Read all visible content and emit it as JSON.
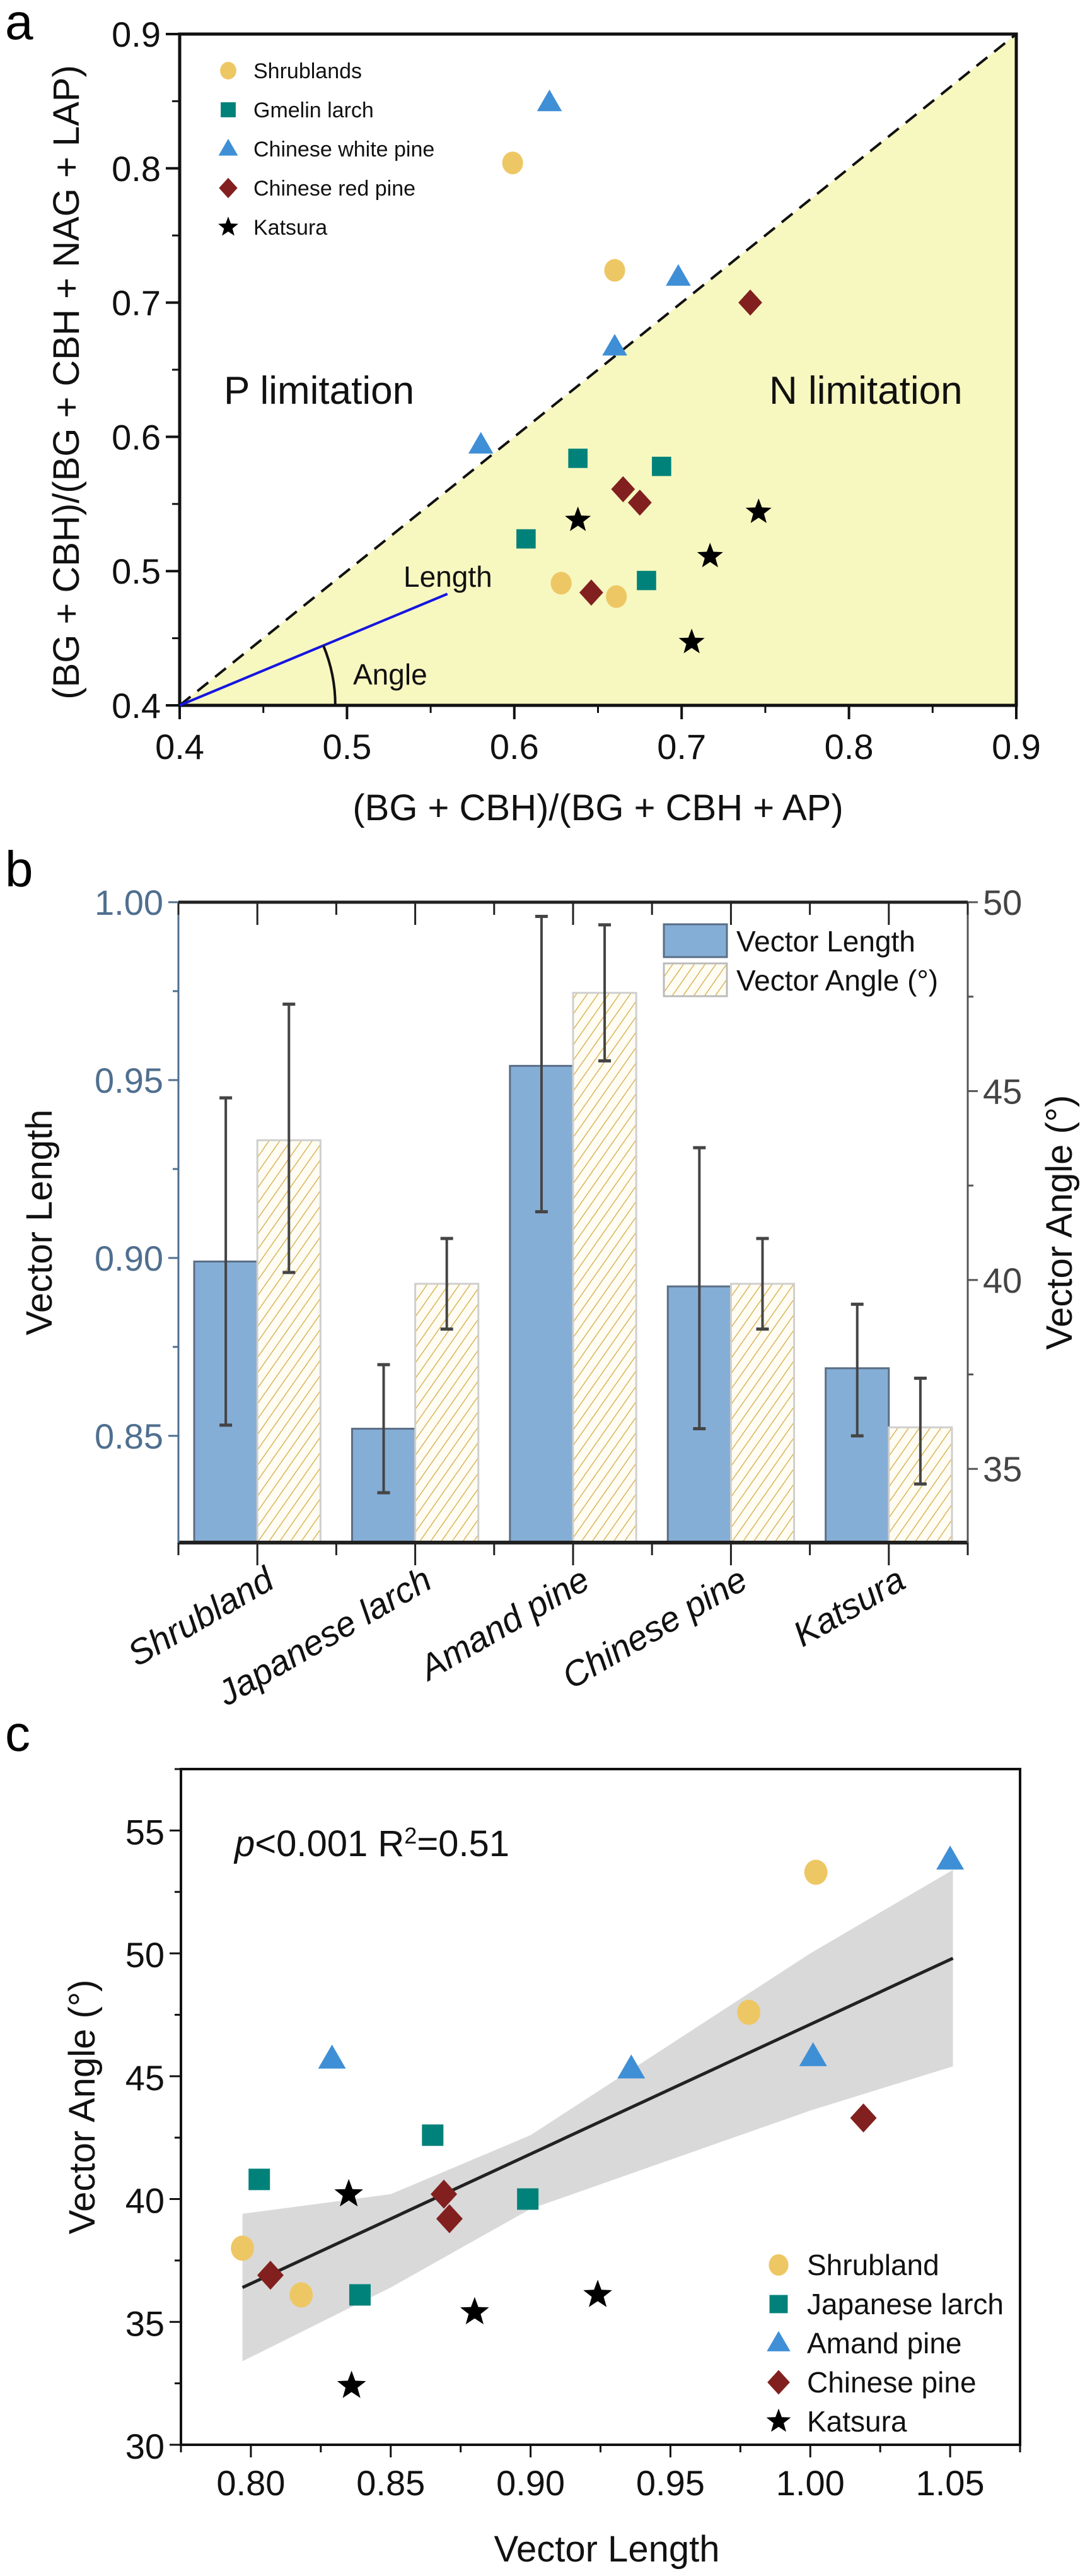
{
  "figure": {
    "panels": [
      "a",
      "b",
      "c"
    ]
  },
  "colors": {
    "shrub": "#EEC765",
    "larch": "#00827A",
    "amand": "#3F8FD6",
    "redpine": "#82201F",
    "katsura": "#000000",
    "nregion": "#F7F7C0",
    "bar_length": "#85AED6",
    "bar_angle_stroke": "#D9B45C",
    "left_axis_b": "#4F6F8F",
    "length_arrow": "#1515E0",
    "length_text": "#3F3FE8",
    "angle_text": "#E8504A",
    "ci_band": "#D9D9D9"
  },
  "chart_data": [
    {
      "id": "a",
      "type": "scatter",
      "panel_label": "a",
      "xlabel": "(BG + CBH)/(BG + CBH + AP)",
      "ylabel": "(BG + CBH)/(BG + CBH + NAG + LAP)",
      "xlim": [
        0.4,
        0.9
      ],
      "ylim": [
        0.4,
        0.9
      ],
      "xticks": [
        0.4,
        0.5,
        0.6,
        0.7,
        0.8,
        0.9
      ],
      "yticks": [
        0.4,
        0.5,
        0.6,
        0.7,
        0.8,
        0.9
      ],
      "xtick_labels": [
        "0.4",
        "0.5",
        "0.6",
        "0.7",
        "0.8",
        "0.9"
      ],
      "ytick_labels": [
        "0.4",
        "0.5",
        "0.6",
        "0.7",
        "0.8",
        "0.9"
      ],
      "reference_line": "1:1 dashed diagonal",
      "annotations": {
        "p_region": "P limitation",
        "n_region": "N limitation",
        "length_label": "Length",
        "angle_label": "Angle",
        "length_vector_end": [
          0.56,
          0.483
        ]
      },
      "legend_position": "top-left",
      "series": [
        {
          "name": "Shrublands",
          "marker": "circle",
          "color_key": "shrub",
          "points": [
            [
              0.599,
              0.804
            ],
            [
              0.66,
              0.724
            ],
            [
              0.628,
              0.491
            ],
            [
              0.661,
              0.481
            ]
          ]
        },
        {
          "name": "Gmelin larch",
          "marker": "square",
          "color_key": "larch",
          "points": [
            [
              0.638,
              0.584
            ],
            [
              0.688,
              0.578
            ],
            [
              0.607,
              0.524
            ],
            [
              0.679,
              0.493
            ]
          ]
        },
        {
          "name": "Chinese white pine",
          "marker": "triangle",
          "color_key": "amand",
          "points": [
            [
              0.621,
              0.849
            ],
            [
              0.698,
              0.719
            ],
            [
              0.66,
              0.667
            ],
            [
              0.58,
              0.594
            ]
          ]
        },
        {
          "name": "Chinese red pine",
          "marker": "diamond",
          "color_key": "redpine",
          "points": [
            [
              0.741,
              0.7
            ],
            [
              0.665,
              0.561
            ],
            [
              0.675,
              0.551
            ],
            [
              0.646,
              0.484
            ]
          ]
        },
        {
          "name": "Katsura",
          "marker": "star",
          "color_key": "katsura",
          "points": [
            [
              0.638,
              0.538
            ],
            [
              0.746,
              0.544
            ],
            [
              0.717,
              0.511
            ],
            [
              0.706,
              0.447
            ]
          ]
        }
      ]
    },
    {
      "id": "b",
      "type": "bar",
      "panel_label": "b",
      "categories": [
        "Shrubland",
        "Japanese larch",
        "Amand pine",
        "Chinese pine",
        "Katsura"
      ],
      "ylabel": "Vector Length",
      "y2label": "Vector Angle (°)",
      "ylim": [
        0.82,
        1.0
      ],
      "y2lim": [
        33.05,
        50
      ],
      "yticks": [
        0.85,
        0.9,
        0.95,
        1.0
      ],
      "ytick_labels": [
        "0.85",
        "0.90",
        "0.95",
        "1.00"
      ],
      "y2ticks": [
        35,
        40,
        45,
        50
      ],
      "y2tick_labels": [
        "35",
        "40",
        "45",
        "50"
      ],
      "legend_position": "top-right",
      "series": [
        {
          "name": "Vector Length",
          "axis": "left",
          "style": "solid",
          "values": [
            0.899,
            0.852,
            0.954,
            0.892,
            0.869
          ],
          "err_low": [
            0.853,
            0.834,
            0.913,
            0.852,
            0.85
          ],
          "err_high": [
            0.945,
            0.87,
            0.996,
            0.931,
            0.887
          ]
        },
        {
          "name": "Vector Angle (°)",
          "axis": "right",
          "style": "hatched",
          "values": [
            43.7,
            39.9,
            47.6,
            39.9,
            36.1
          ],
          "err_low": [
            40.2,
            38.7,
            45.8,
            38.7,
            34.6
          ],
          "err_high": [
            47.3,
            41.1,
            49.4,
            41.1,
            37.4
          ]
        }
      ]
    },
    {
      "id": "c",
      "type": "scatter",
      "panel_label": "c",
      "xlabel": "Vector Length",
      "ylabel": "Vector Angle (°)",
      "xlim": [
        0.775,
        1.075
      ],
      "ylim": [
        30,
        57.5
      ],
      "xticks": [
        0.8,
        0.85,
        0.9,
        0.95,
        1.0,
        1.05
      ],
      "xtick_labels": [
        "0.80",
        "0.85",
        "0.90",
        "0.95",
        "1.00",
        "1.05"
      ],
      "yticks": [
        30,
        35,
        40,
        45,
        50,
        55
      ],
      "ytick_labels": [
        "30",
        "35",
        "40",
        "45",
        "50",
        "55"
      ],
      "stats": {
        "p_italic": "p",
        "p_rest": "<0.001 R",
        "r2_sup": "2",
        "r2_rest": "=0.51"
      },
      "regression": {
        "x": [
          0.797,
          1.051
        ],
        "y": [
          36.4,
          49.8
        ]
      },
      "ci_band": {
        "x": [
          0.797,
          0.85,
          0.9,
          0.95,
          1.0,
          1.051
        ],
        "upper": [
          39.4,
          40.2,
          42.6,
          46.3,
          50.0,
          53.4
        ],
        "lower": [
          33.4,
          36.4,
          39.6,
          41.6,
          43.6,
          45.4
        ]
      },
      "legend_position": "bottom-right",
      "series": [
        {
          "name": "Shrubland",
          "marker": "circle",
          "color_key": "shrub",
          "points": [
            [
              0.797,
              38.0
            ],
            [
              0.818,
              36.1
            ],
            [
              0.978,
              47.6
            ],
            [
              1.002,
              53.3
            ]
          ]
        },
        {
          "name": "Japanese larch",
          "marker": "square",
          "color_key": "larch",
          "points": [
            [
              0.803,
              40.8
            ],
            [
              0.865,
              42.6
            ],
            [
              0.899,
              40.0
            ],
            [
              0.839,
              36.1
            ]
          ]
        },
        {
          "name": "Amand pine",
          "marker": "triangle",
          "color_key": "amand",
          "points": [
            [
              0.829,
              45.7
            ],
            [
              0.936,
              45.3
            ],
            [
              1.001,
              45.8
            ],
            [
              1.05,
              53.8
            ]
          ]
        },
        {
          "name": "Chinese pine",
          "marker": "diamond",
          "color_key": "redpine",
          "points": [
            [
              0.807,
              36.9
            ],
            [
              0.869,
              40.2
            ],
            [
              0.871,
              39.2
            ],
            [
              1.019,
              43.3
            ]
          ]
        },
        {
          "name": "Katsura",
          "marker": "star",
          "color_key": "katsura",
          "points": [
            [
              0.835,
              40.2
            ],
            [
              0.836,
              32.4
            ],
            [
              0.88,
              35.4
            ],
            [
              0.924,
              36.1
            ]
          ]
        }
      ]
    }
  ]
}
